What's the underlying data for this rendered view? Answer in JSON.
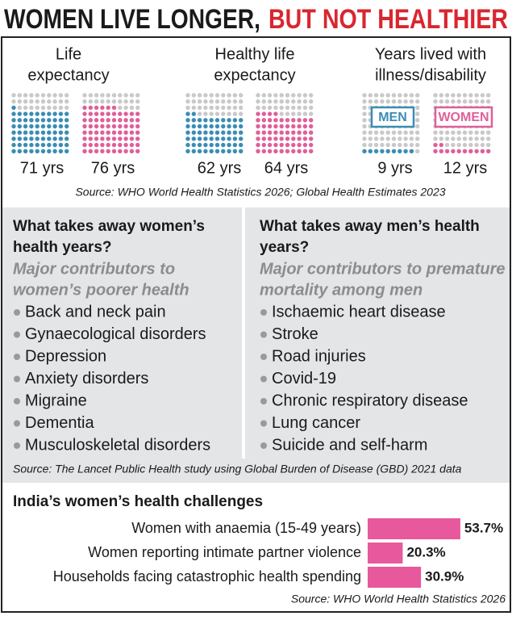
{
  "title": {
    "part1": "WOMEN LIVE LONGER,",
    "part2": "BUT NOT HEALTHIER"
  },
  "chart_data": [
    {
      "type": "waffle",
      "title": [
        "Life",
        "expectancy"
      ],
      "values": [
        71,
        76
      ],
      "value_labels": [
        "71 yrs",
        "76 yrs"
      ],
      "colors": [
        "#3a8db4",
        "#df5f9a"
      ]
    },
    {
      "type": "waffle",
      "title": [
        "Healthy life",
        "expectancy"
      ],
      "values": [
        62,
        64
      ],
      "value_labels": [
        "62 yrs",
        "64 yrs"
      ],
      "colors": [
        "#3a8db4",
        "#df5f9a"
      ]
    },
    {
      "type": "waffle",
      "title": [
        "Years lived with",
        "illness/disability"
      ],
      "categories": [
        "MEN",
        "WOMEN"
      ],
      "values": [
        9,
        12
      ],
      "value_labels": [
        "9 yrs",
        "12 yrs"
      ],
      "colors": [
        "#3a8db4",
        "#df5f9a"
      ]
    },
    {
      "type": "bar",
      "title": "India’s women’s health challenges",
      "categories": [
        "Women with anaemia (15-49 years)",
        "Women reporting intimate partner violence",
        "Households facing catastrophic health spending"
      ],
      "values": [
        53.7,
        20.3,
        30.9
      ],
      "value_labels": [
        "53.7%",
        "20.3%",
        "30.9%"
      ],
      "color": "#e8589c",
      "source": "Source: WHO World Health Statistics 2026"
    }
  ],
  "expectancy_source": "Source: WHO World Health Statistics 2026; Global Health Estimates 2023",
  "causes": [
    {
      "heading": [
        "What takes away women’s",
        "health years?"
      ],
      "subheading": [
        "Major contributors to",
        "women’s poorer health"
      ],
      "items": [
        "Back and neck pain",
        "Gynaecological disorders",
        "Depression",
        "Anxiety disorders",
        "Migraine",
        "Dementia",
        "Musculoskeletal disorders"
      ]
    },
    {
      "heading": [
        "What takes away men’s health",
        "years?"
      ],
      "subheading": [
        "Major contributors to premature",
        "mortality among men"
      ],
      "items": [
        "Ischaemic heart disease",
        "Stroke",
        "Road injuries",
        "Covid-19",
        "Chronic respiratory disease",
        "Lung cancer",
        "Suicide and self-harm"
      ]
    }
  ],
  "causes_source": "Source: The Lancet Public Health study using Global Burden of Disease (GBD) 2021 data"
}
